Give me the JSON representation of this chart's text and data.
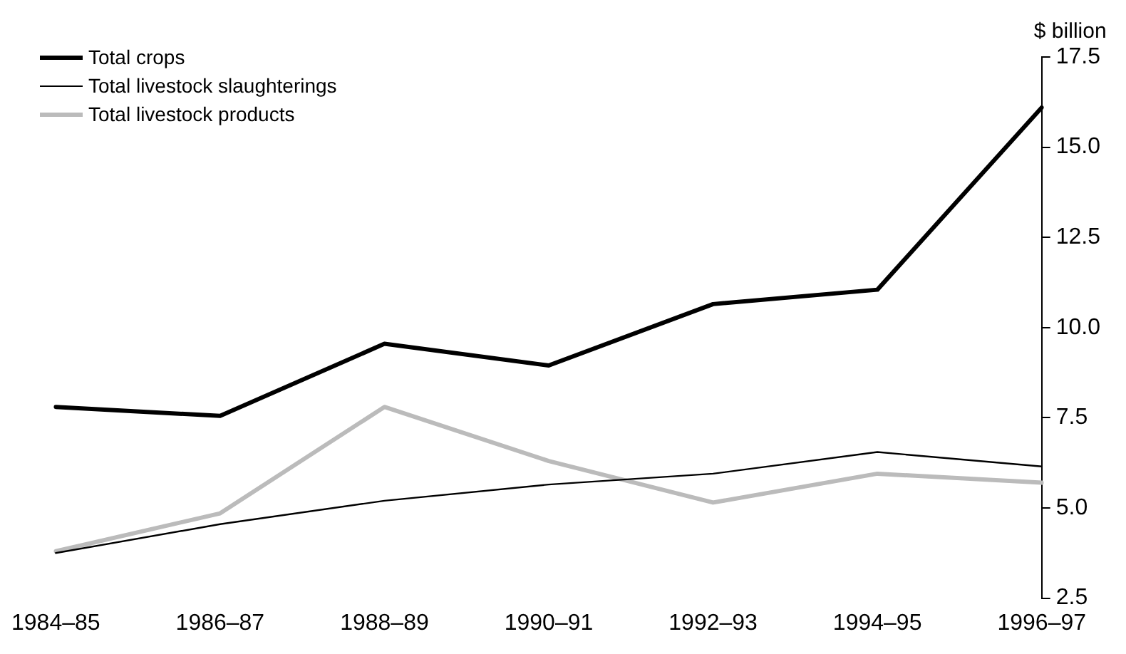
{
  "chart_data": {
    "type": "line",
    "ylabel": "$ billion",
    "categories": [
      "1984–85",
      "1986–87",
      "1988–89",
      "1990–91",
      "1992–93",
      "1994–95",
      "1996–97"
    ],
    "series": [
      {
        "name": "Total crops",
        "color": "#000000",
        "values": [
          7.8,
          7.55,
          9.55,
          8.95,
          10.65,
          11.05,
          16.1
        ]
      },
      {
        "name": "Total livestock slaughterings",
        "color": "#000000",
        "values": [
          3.75,
          4.55,
          5.2,
          5.65,
          5.95,
          6.55,
          6.15
        ]
      },
      {
        "name": "Total livestock products",
        "color": "#bbbbbb",
        "values": [
          3.8,
          4.85,
          7.8,
          6.3,
          5.15,
          5.95,
          5.7
        ]
      }
    ],
    "ylim": [
      2.5,
      17.5
    ],
    "yticks": [
      {
        "value": 2.5,
        "label": "2.5"
      },
      {
        "value": 5,
        "label": "5.0"
      },
      {
        "value": 7.5,
        "label": "7.5"
      },
      {
        "value": 10,
        "label": "10.0"
      },
      {
        "value": 12.5,
        "label": "12.5"
      },
      {
        "value": 15,
        "label": "15.0"
      },
      {
        "value": 17.5,
        "label": "17.5"
      }
    ],
    "grid": false,
    "legend": "top left",
    "marker": "none"
  }
}
